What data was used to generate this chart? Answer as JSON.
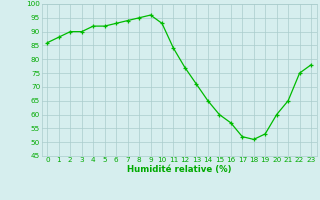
{
  "x": [
    0,
    1,
    2,
    3,
    4,
    5,
    6,
    7,
    8,
    9,
    10,
    11,
    12,
    13,
    14,
    15,
    16,
    17,
    18,
    19,
    20,
    21,
    22,
    23
  ],
  "y": [
    86,
    88,
    90,
    90,
    92,
    92,
    93,
    94,
    95,
    96,
    93,
    84,
    77,
    71,
    65,
    60,
    57,
    52,
    51,
    53,
    60,
    65,
    75,
    78
  ],
  "line_color": "#00bb00",
  "marker": "+",
  "markersize": 3.5,
  "linewidth": 0.9,
  "bg_color": "#d6eeee",
  "grid_color": "#aacccc",
  "xlabel": "Humidité relative (%)",
  "xlabel_color": "#00aa00",
  "tick_color": "#00aa00",
  "tick_fontsize": 5.2,
  "xlabel_fontsize": 6.2,
  "ylim": [
    45,
    100
  ],
  "xlim": [
    -0.5,
    23.5
  ],
  "yticks": [
    45,
    50,
    55,
    60,
    65,
    70,
    75,
    80,
    85,
    90,
    95,
    100
  ],
  "xticks": [
    0,
    1,
    2,
    3,
    4,
    5,
    6,
    7,
    8,
    9,
    10,
    11,
    12,
    13,
    14,
    15,
    16,
    17,
    18,
    19,
    20,
    21,
    22,
    23
  ]
}
